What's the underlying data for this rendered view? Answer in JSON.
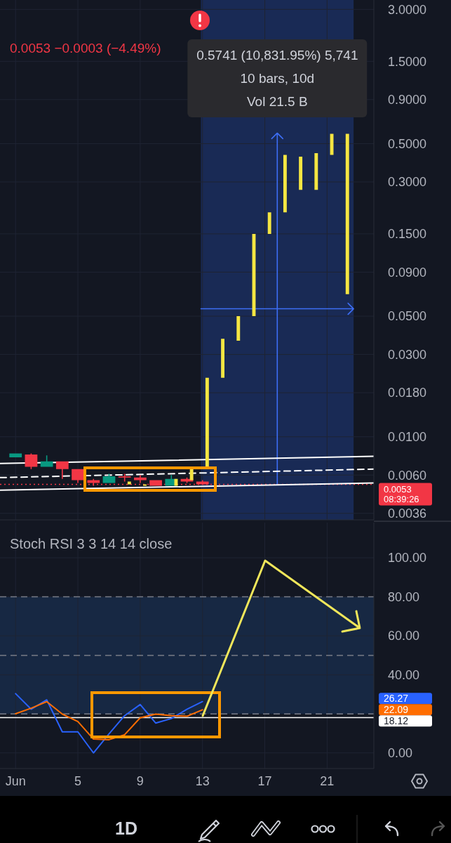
{
  "chart_data": [
    {
      "type": "candlestick",
      "subtitle": "0.0053  −0.0003 (−4.49%)",
      "annotations": [
        "0.5741 (10,831.95%) 5,741",
        "10 bars, 10d",
        "Vol 21.5 B"
      ],
      "series": [
        {
          "x": [
            1,
            2,
            3,
            4,
            5,
            6,
            7,
            8,
            9,
            10,
            11,
            12,
            13
          ],
          "ohlc": [
            [
              0.0076,
              0.008,
              0.0076,
              0.008
            ],
            [
              0.0079,
              0.008,
              0.0065,
              0.0067
            ],
            [
              0.0067,
              0.0078,
              0.0067,
              0.0072
            ],
            [
              0.0072,
              0.0072,
              0.0057,
              0.0065
            ],
            [
              0.0065,
              0.0065,
              0.0054,
              0.0056
            ],
            [
              0.0056,
              0.0057,
              0.0052,
              0.0054
            ],
            [
              0.0054,
              0.0061,
              0.0054,
              0.0059
            ],
            [
              0.0059,
              0.0061,
              0.0055,
              0.0058
            ],
            [
              0.0058,
              0.006,
              0.0054,
              0.0056
            ],
            [
              0.0056,
              0.0056,
              0.0052,
              0.0052
            ],
            [
              0.0052,
              0.006,
              0.0052,
              0.0057
            ],
            [
              0.0057,
              0.0058,
              0.0054,
              0.0055
            ],
            [
              0.0055,
              0.0056,
              0.0053,
              0.0053
            ]
          ],
          "colors": [
            "#089981",
            "#f23645",
            "#089981",
            "#f23645",
            "#f23645",
            "#f23645",
            "#089981",
            "#f23645",
            "#f23645",
            "#f23645",
            "#089981",
            "#f23645",
            "#f23645"
          ]
        },
        {
          "x": [
            8.3,
            9.3,
            11.3,
            12.3,
            13.3,
            14.3,
            15.3,
            16.3,
            17.3,
            18.3,
            19.3,
            20.3,
            21.3,
            22.3
          ],
          "ohlc": [
            [
              0.0053,
              0.0055,
              0.0053,
              0.0055
            ],
            [
              0.0052,
              0.0053,
              0.0052,
              0.0053
            ],
            [
              0.0052,
              0.0057,
              0.0052,
              0.0057
            ],
            [
              0.0056,
              0.0067,
              0.0056,
              0.0067
            ],
            [
              0.0067,
              0.022,
              0.0067,
              0.022
            ],
            [
              0.022,
              0.037,
              0.022,
              0.037
            ],
            [
              0.036,
              0.05,
              0.036,
              0.05
            ],
            [
              0.05,
              0.15,
              0.05,
              0.15
            ],
            [
              0.15,
              0.2,
              0.15,
              0.2
            ],
            [
              0.2,
              0.43,
              0.2,
              0.43
            ],
            [
              0.27,
              0.42,
              0.27,
              0.42
            ],
            [
              0.27,
              0.44,
              0.27,
              0.44
            ],
            [
              0.43,
              0.57,
              0.43,
              0.57
            ],
            [
              0.067,
              0.57,
              0.067,
              0.57
            ]
          ],
          "color": "#f5e642"
        },
        {
          "type": "line",
          "x": [
            0,
            24
          ],
          "values": [
            0.007,
            0.0077
          ],
          "color": "#ffffff",
          "line_style": "solid"
        },
        {
          "type": "line",
          "x": [
            0,
            24
          ],
          "values": [
            0.0058,
            0.0065
          ],
          "color": "#ffffff",
          "line_style": "dashed"
        },
        {
          "type": "line",
          "x": [
            0,
            24
          ],
          "values": [
            0.0049,
            0.0054
          ],
          "color": "#ffffff",
          "line_style": "solid"
        }
      ],
      "xlim": [
        0,
        24
      ],
      "xticks": [
        1,
        5,
        9,
        13,
        17,
        21
      ],
      "ylim": [
        0.0033,
        3.4
      ],
      "yticks": [
        {
          "value": 3,
          "label": "3.0000"
        },
        {
          "value": 1.5,
          "label": "1.5000"
        },
        {
          "value": 0.9,
          "label": "0.9000"
        },
        {
          "value": 0.5,
          "label": "0.5000"
        },
        {
          "value": 0.3,
          "label": "0.3000"
        },
        {
          "value": 0.15,
          "label": "0.1500"
        },
        {
          "value": 0.09,
          "label": "0.0900"
        },
        {
          "value": 0.05,
          "label": "0.0500"
        },
        {
          "value": 0.03,
          "label": "0.0300"
        },
        {
          "value": 0.018,
          "label": "0.0180"
        },
        {
          "value": 0.01,
          "label": "0.0100"
        },
        {
          "value": 0.006,
          "label": "0.0060"
        },
        {
          "value": 0.0036,
          "label": "0.0036"
        }
      ],
      "log": true,
      "grid": true,
      "tick_labels": "y",
      "ref_lines": [
        {
          "axis": "y",
          "value": 0.0053,
          "label": "0.0053\n08:39:26",
          "color": "#f23645",
          "line_style": "dotted"
        }
      ],
      "bands": [
        {
          "axis": "x",
          "from": 12.9,
          "to": 22.7,
          "color": "#192a55"
        }
      ]
    },
    {
      "type": "line",
      "title": "Stoch RSI 3 3 14 14 close",
      "annotations": [
        "26.27",
        "22.09",
        "1D"
      ],
      "x": [
        1,
        2,
        3,
        4,
        5,
        6,
        7,
        8,
        9,
        10,
        11,
        12,
        13
      ],
      "series": [
        {
          "color": "#2962ff",
          "values": [
            30.4,
            22.4,
            27.2,
            10.8,
            10.8,
            0,
            9.8,
            19.1,
            24.8,
            15.3,
            17.6,
            22.4,
            26.3
          ]
        },
        {
          "color": "#ff6d00",
          "values": [
            20.1,
            22.9,
            26.3,
            19.9,
            16.1,
            7.1,
            6.8,
            9.3,
            18.0,
            19.9,
            19.1,
            18.8,
            22.1
          ]
        }
      ],
      "xlim": [
        0,
        24
      ],
      "xticks": [
        {
          "value": 1,
          "label": "Jun"
        },
        5,
        9,
        13,
        17,
        21
      ],
      "ylim": [
        -8,
        118
      ],
      "yticks": [
        {
          "value": 100,
          "label": "100.00"
        },
        {
          "value": 80,
          "label": "80.00"
        },
        {
          "value": 60,
          "label": "60.00"
        },
        {
          "value": 40,
          "label": "40.00"
        },
        {
          "value": 0,
          "label": "0.00"
        }
      ],
      "grid": true,
      "ref_lines": [
        {
          "axis": "y",
          "value": 80,
          "color": "#787b86",
          "line_style": "dashed"
        },
        {
          "axis": "y",
          "value": 50,
          "color": "#787b86",
          "line_style": "dashed"
        },
        {
          "axis": "y",
          "value": 20,
          "color": "#787b86",
          "line_style": "dashed"
        },
        {
          "axis": "y",
          "value": 18.12,
          "label": "18.12",
          "color": "#ffffff",
          "line_style": "solid"
        }
      ],
      "bands": [
        {
          "axis": "y",
          "from": 20,
          "to": 80,
          "color": "#172843"
        }
      ]
    }
  ]
}
